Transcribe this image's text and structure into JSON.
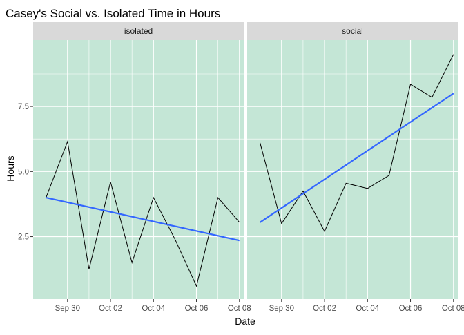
{
  "chart_data": {
    "type": "line",
    "title": "Casey's Social vs. Isolated Time in Hours",
    "xlabel": "Date",
    "ylabel": "Hours",
    "x_dates": [
      "Sep 29",
      "Sep 30",
      "Oct 01",
      "Oct 02",
      "Oct 03",
      "Oct 04",
      "Oct 05",
      "Oct 06",
      "Oct 07",
      "Oct 08"
    ],
    "x_ticks": [
      "Sep 30",
      "Oct 02",
      "Oct 04",
      "Oct 06",
      "Oct 08"
    ],
    "y_ticks": [
      2.5,
      5.0,
      7.5
    ],
    "y_tick_labels": [
      "2.5",
      "5.0",
      "7.5"
    ],
    "xlim": [
      "Sep 28.4",
      "Oct 08.2"
    ],
    "ylim": [
      0.1,
      10.05
    ],
    "panel_background": "#c4e6d6",
    "strip_background": "#d9d9d9",
    "line_color": "#000000",
    "trend_color": "#3366ff",
    "grid": true,
    "facets": [
      {
        "strip": "isolated",
        "values": [
          4.0,
          6.15,
          1.25,
          4.6,
          1.5,
          4.0,
          2.4,
          0.6,
          4.0,
          3.05
        ],
        "trend": [
          4.0,
          2.35
        ]
      },
      {
        "strip": "social",
        "values": [
          6.1,
          3.0,
          4.25,
          2.7,
          4.55,
          4.35,
          4.85,
          8.35,
          7.85,
          9.5
        ],
        "trend": [
          3.05,
          8.0
        ]
      }
    ]
  }
}
